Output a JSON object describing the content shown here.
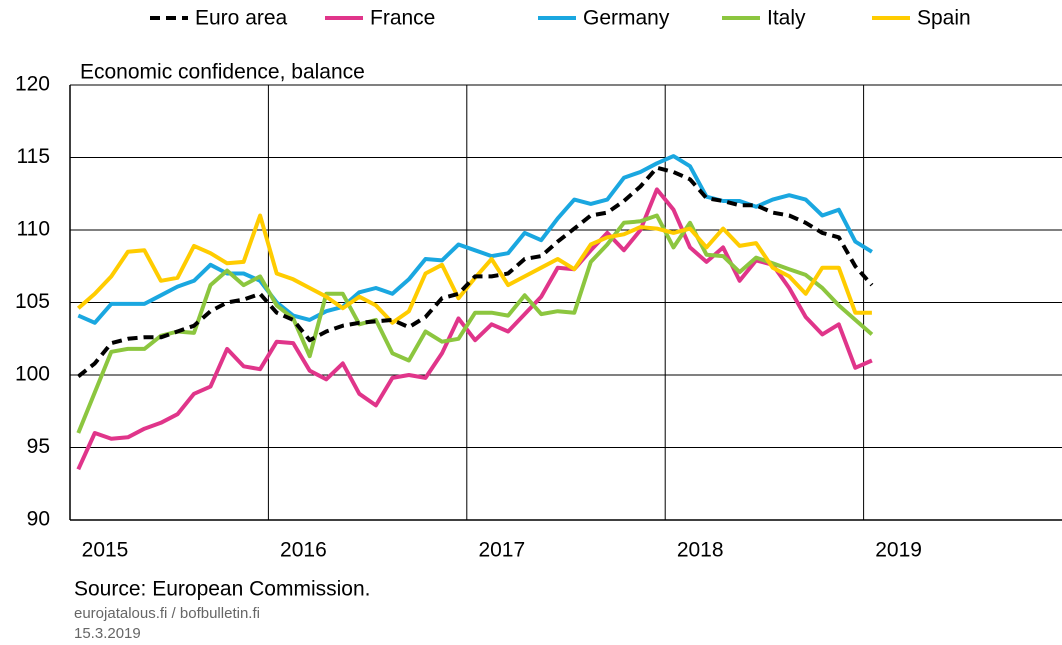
{
  "chart_data": {
    "type": "line",
    "ylabel": "Economic confidence, balance",
    "source": "Source: European Commission.",
    "notes": [
      "eurojatalous.fi / bofbulletin.fi",
      "15.3.2019"
    ],
    "xlim": [
      2015,
      2020
    ],
    "xticks": [
      2015,
      2016,
      2017,
      2018,
      2019
    ],
    "ylim": [
      90,
      120
    ],
    "yticks": [
      90,
      95,
      100,
      105,
      110,
      115,
      120
    ],
    "grid": true,
    "legend": "top",
    "x": [
      2015.042,
      2015.125,
      2015.208,
      2015.292,
      2015.375,
      2015.458,
      2015.542,
      2015.625,
      2015.708,
      2015.792,
      2015.875,
      2015.958,
      2016.042,
      2016.125,
      2016.208,
      2016.292,
      2016.375,
      2016.458,
      2016.542,
      2016.625,
      2016.708,
      2016.792,
      2016.875,
      2016.958,
      2017.042,
      2017.125,
      2017.208,
      2017.292,
      2017.375,
      2017.458,
      2017.542,
      2017.625,
      2017.708,
      2017.792,
      2017.875,
      2017.958,
      2018.042,
      2018.125,
      2018.208,
      2018.292,
      2018.375,
      2018.458,
      2018.542,
      2018.625,
      2018.708,
      2018.792,
      2018.875,
      2018.958,
      2019.042
    ],
    "series": [
      {
        "name": "Euro area",
        "color": "#000000",
        "dashed": true,
        "values": [
          99.9,
          100.8,
          102.2,
          102.5,
          102.6,
          102.6,
          103.0,
          103.4,
          104.4,
          105.0,
          105.2,
          105.6,
          104.3,
          103.8,
          102.4,
          103.0,
          103.4,
          103.6,
          103.7,
          103.8,
          103.3,
          104.0,
          105.3,
          105.6,
          106.8,
          106.8,
          107.0,
          108.0,
          108.2,
          109.2,
          110.1,
          111.0,
          111.2,
          112.0,
          113.0,
          114.3,
          114.0,
          113.5,
          112.2,
          112.0,
          111.7,
          111.7,
          111.2,
          111.0,
          110.5,
          109.8,
          109.5,
          107.5,
          106.2
        ]
      },
      {
        "name": "France",
        "color": "#e0358a",
        "dashed": false,
        "values": [
          93.5,
          96.0,
          95.6,
          95.7,
          96.3,
          96.7,
          97.3,
          98.7,
          99.2,
          101.8,
          100.6,
          100.4,
          102.3,
          102.2,
          100.3,
          99.7,
          100.8,
          98.7,
          97.9,
          99.8,
          100.0,
          99.8,
          101.5,
          103.9,
          102.4,
          103.5,
          103.0,
          104.2,
          105.4,
          107.4,
          107.3,
          108.6,
          109.8,
          108.6,
          110.0,
          112.8,
          111.4,
          108.8,
          107.8,
          108.8,
          106.5,
          107.9,
          107.6,
          106.0,
          104.0,
          102.8,
          103.5,
          100.5,
          101.0
        ]
      },
      {
        "name": "Germany",
        "color": "#1aa7e0",
        "dashed": false,
        "values": [
          104.1,
          103.6,
          104.9,
          104.9,
          104.9,
          105.5,
          106.1,
          106.5,
          107.6,
          107.0,
          107.0,
          106.5,
          105.0,
          104.1,
          103.8,
          104.4,
          104.7,
          105.7,
          106.0,
          105.6,
          106.6,
          108.0,
          107.9,
          109.0,
          108.6,
          108.2,
          108.4,
          109.8,
          109.3,
          110.8,
          112.1,
          111.8,
          112.1,
          113.6,
          114.0,
          114.6,
          115.1,
          114.4,
          112.3,
          112.0,
          112.0,
          111.6,
          112.1,
          112.4,
          112.1,
          111.0,
          111.4,
          109.2,
          108.5
        ]
      },
      {
        "name": "Italy",
        "color": "#8cc63f",
        "dashed": false,
        "values": [
          96.0,
          98.8,
          101.6,
          101.8,
          101.8,
          102.7,
          103.0,
          102.9,
          106.2,
          107.2,
          106.2,
          106.8,
          104.8,
          103.9,
          101.3,
          105.6,
          105.6,
          103.5,
          103.8,
          101.5,
          101.0,
          103.0,
          102.3,
          102.5,
          104.3,
          104.3,
          104.1,
          105.5,
          104.2,
          104.4,
          104.3,
          107.8,
          109.0,
          110.5,
          110.6,
          111.0,
          108.8,
          110.5,
          108.3,
          108.2,
          107.1,
          108.1,
          107.7,
          107.3,
          106.9,
          106.0,
          104.8,
          103.8,
          102.8
        ]
      },
      {
        "name": "Spain",
        "color": "#ffcc00",
        "dashed": false,
        "values": [
          104.6,
          105.6,
          106.8,
          108.5,
          108.6,
          106.5,
          106.7,
          108.9,
          108.4,
          107.7,
          107.8,
          111.0,
          107.0,
          106.6,
          106.0,
          105.4,
          104.6,
          105.4,
          104.8,
          103.6,
          104.4,
          107.0,
          107.6,
          105.3,
          106.7,
          108.0,
          106.2,
          106.8,
          107.4,
          108.0,
          107.3,
          109.0,
          109.5,
          109.7,
          110.2,
          110.1,
          109.8,
          110.1,
          108.8,
          110.1,
          108.9,
          109.1,
          107.4,
          106.8,
          105.6,
          107.4,
          107.4,
          104.3,
          104.3
        ]
      }
    ]
  }
}
